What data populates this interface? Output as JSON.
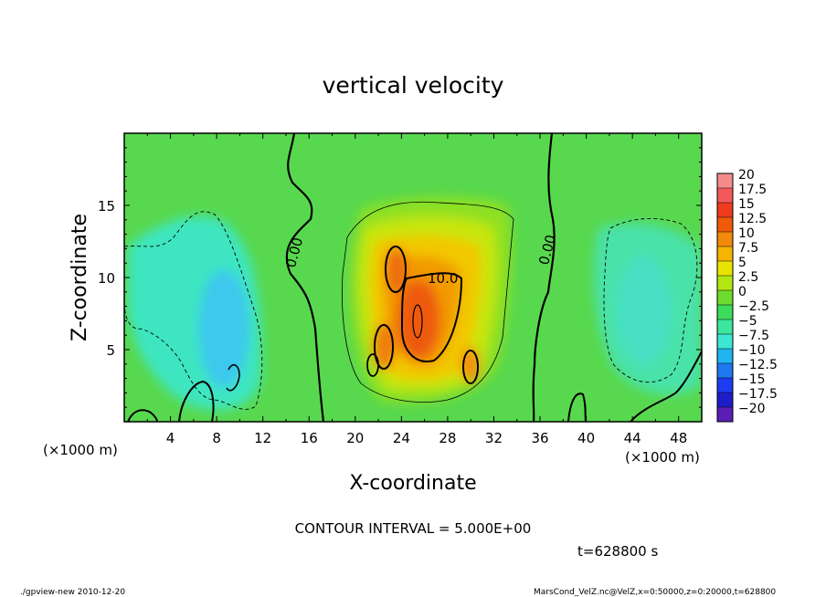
{
  "chart_data": {
    "type": "heatmap",
    "title": "vertical velocity",
    "xlabel": "X-coordinate",
    "ylabel": "Z-coordinate",
    "x_unit_label": "(×1000 m)",
    "y_unit_label": "(×1000 m)",
    "xlim": [
      0,
      50
    ],
    "ylim": [
      0,
      20
    ],
    "x_ticks": [
      4,
      8,
      12,
      16,
      20,
      24,
      28,
      32,
      36,
      40,
      44,
      48
    ],
    "y_ticks": [
      5,
      10,
      15
    ],
    "colorbar": {
      "labels": [
        "20",
        "17.5",
        "15",
        "12.5",
        "10",
        "7.5",
        "5",
        "2.5",
        "0",
        "−2.5",
        "−5",
        "−7.5",
        "−10",
        "−12.5",
        "−15",
        "−17.5",
        "−20"
      ],
      "colors": [
        "#f48c8c",
        "#f25a5a",
        "#ee3c1c",
        "#f05a0a",
        "#f28a0a",
        "#f6b400",
        "#e8e400",
        "#b4e614",
        "#6edc2e",
        "#3cdc5c",
        "#3ce69c",
        "#3ce6d2",
        "#20b4f0",
        "#1e78f0",
        "#1e3cf0",
        "#1e1ec8",
        "#5a1eb4"
      ]
    },
    "contour_labels": [
      "0.00",
      "10.0",
      "0.00"
    ],
    "contour_interval": "CONTOUR INTERVAL = 5.000E+00",
    "time_label": "t=628800 s"
  },
  "footer": {
    "left": "./gpview-new  2010-12-20",
    "right": "MarsCond_VelZ.nc@VelZ,x=0:50000,z=0:20000,t=628800"
  }
}
